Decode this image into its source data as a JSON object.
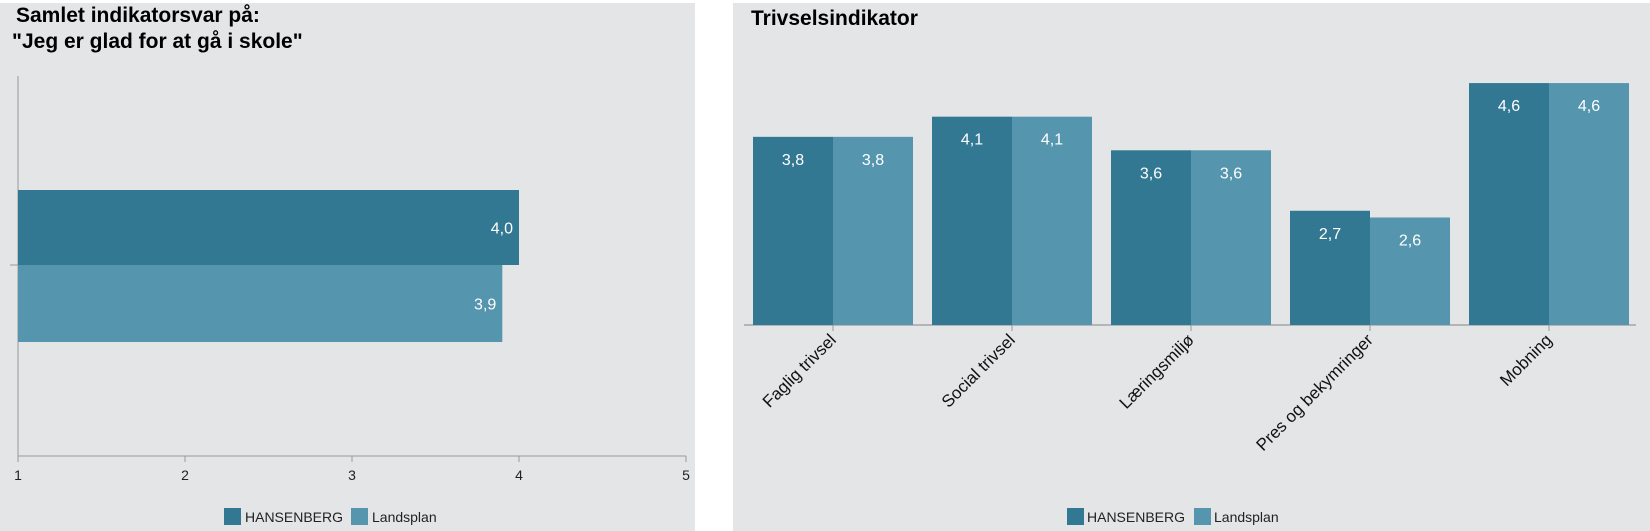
{
  "colors": {
    "background": "#e4e5e7",
    "series_dark": "#337893",
    "series_light": "#5596ae",
    "axis": "#999999"
  },
  "chart_data": [
    {
      "type": "bar",
      "orientation": "horizontal",
      "title_lines": [
        "Samlet indikatorsvar på:",
        "\"Jeg er glad for at gå i skole\""
      ],
      "xlim": [
        1,
        5
      ],
      "xticks": [
        "1",
        "2",
        "3",
        "4",
        "5"
      ],
      "series": [
        {
          "name": "HANSENBERG",
          "values": [
            4.0
          ],
          "labels": [
            "4,0"
          ]
        },
        {
          "name": "Landsplan",
          "values": [
            3.9
          ],
          "labels": [
            "3,9"
          ]
        }
      ],
      "legend": "bottom",
      "grid": false
    },
    {
      "type": "bar",
      "orientation": "vertical",
      "title": "Trivselsindikator",
      "ylim": [
        1,
        5
      ],
      "categories": [
        "Faglig trivsel",
        "Social trivsel",
        "Læringsmiljø",
        "Pres og bekymringer",
        "Mobning"
      ],
      "series": [
        {
          "name": "HANSENBERG",
          "values": [
            3.8,
            4.1,
            3.6,
            2.7,
            4.6
          ],
          "labels": [
            "3,8",
            "4,1",
            "3,6",
            "2,7",
            "4,6"
          ]
        },
        {
          "name": "Landsplan",
          "values": [
            3.8,
            4.1,
            3.6,
            2.6,
            4.6
          ],
          "labels": [
            "3,8",
            "4,1",
            "3,6",
            "2,6",
            "4,6"
          ]
        }
      ],
      "legend": "bottom",
      "grid": false
    }
  ]
}
